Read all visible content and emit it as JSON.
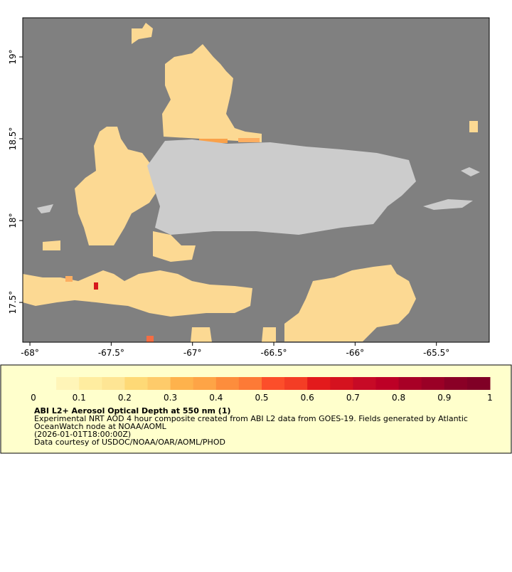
{
  "map": {
    "xlim": [
      -68.044,
      -65.175
    ],
    "ylim": [
      17.257,
      19.239
    ],
    "xticks": [
      {
        "value": -68,
        "label": "-68°"
      },
      {
        "value": -67.5,
        "label": "-67.5°"
      },
      {
        "value": -67,
        "label": "-67°"
      },
      {
        "value": -66.5,
        "label": "-66.5°"
      },
      {
        "value": -66,
        "label": "-66°"
      },
      {
        "value": -65.5,
        "label": "-65.5°"
      }
    ],
    "yticks": [
      {
        "value": 19,
        "label": "19°"
      },
      {
        "value": 18.5,
        "label": "18.5°"
      },
      {
        "value": 18,
        "label": "18°"
      },
      {
        "value": 17.5,
        "label": "17.5°"
      }
    ]
  },
  "colorbar": {
    "range": [
      0,
      1
    ],
    "ticks": [
      0,
      0.1,
      0.2,
      0.3,
      0.4,
      0.5,
      0.6,
      0.7,
      0.8,
      0.9,
      1
    ],
    "colors": [
      "#ffffcc",
      "#fff5b8",
      "#ffeda0",
      "#fee594",
      "#fed976",
      "#fecb6a",
      "#feb24c",
      "#fea446",
      "#fd8d3c",
      "#fd7a36",
      "#fc4e2a",
      "#f43d25",
      "#e31a1c",
      "#d5121f",
      "#c70a26",
      "#bd0026",
      "#a80026",
      "#9a0026",
      "#8a0026",
      "#800026"
    ]
  },
  "caption": {
    "title": "ABI L2+ Aerosol Optical Depth at 550 nm (1)",
    "lines": [
      "Experimental NRT AOD 4 hour composite created from ABI L2 data from GOES-19. Fields generated by Atlantic",
      "OceanWatch node at NOAA/AOML",
      "(2026-01-01T18:00:00Z)",
      "Data courtesy of USDOC/NOAA/OAR/AOML/PHOD"
    ]
  }
}
